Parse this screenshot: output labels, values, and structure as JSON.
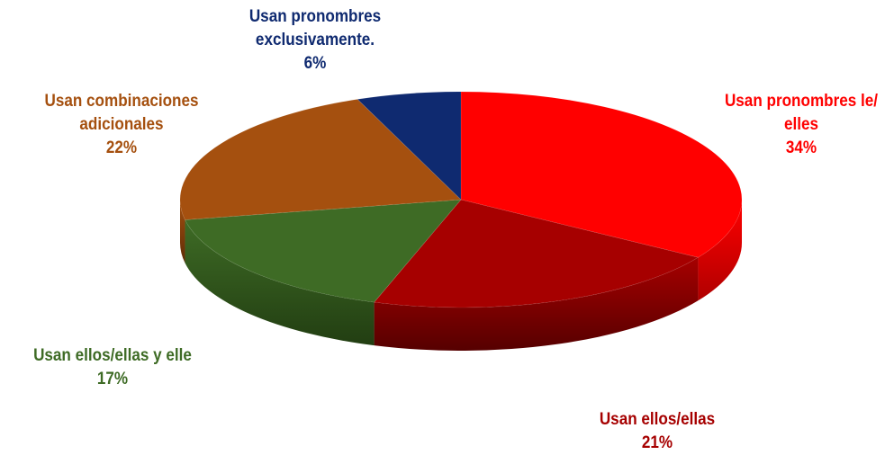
{
  "chart_data": {
    "type": "pie",
    "style": "3d",
    "slices": [
      {
        "label_lines": [
          "Usan pronombres le/",
          "elles"
        ],
        "pct_text": "34%",
        "value": 34,
        "color": "#ff0000",
        "dark": "#b00000"
      },
      {
        "label_lines": [
          "Usan ellos/ellas"
        ],
        "pct_text": "21%",
        "value": 21,
        "color": "#a60000",
        "dark": "#560000"
      },
      {
        "label_lines": [
          "Usan ellos/ellas y elle"
        ],
        "pct_text": "17%",
        "value": 17,
        "color": "#3e6b25",
        "dark": "#223e12"
      },
      {
        "label_lines": [
          "Usan combinaciones",
          "adicionales"
        ],
        "pct_text": "22%",
        "value": 22,
        "color": "#a5500f",
        "dark": "#5e2c07"
      },
      {
        "label_lines": [
          "Usan pronombres",
          "exclusivamente."
        ],
        "pct_text": "6%",
        "value": 6,
        "color": "#0f2a70",
        "dark": "#07163e"
      }
    ]
  }
}
